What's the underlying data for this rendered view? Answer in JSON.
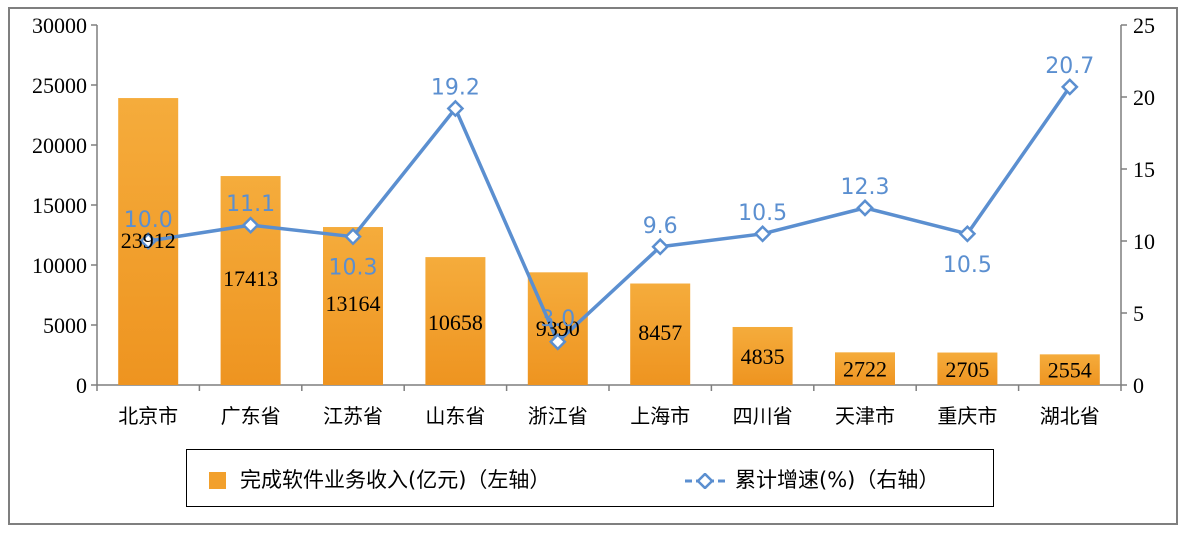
{
  "chart_data": {
    "type": "bar+line",
    "categories": [
      "北京市",
      "广东省",
      "江苏省",
      "山东省",
      "浙江省",
      "上海市",
      "四川省",
      "天津市",
      "重庆市",
      "湖北省"
    ],
    "series": [
      {
        "name": "完成软件业务收入(亿元)（左轴）",
        "type": "bar",
        "axis": "left",
        "values": [
          23912,
          17413,
          13164,
          10658,
          9390,
          8457,
          4835,
          2722,
          2705,
          2554
        ],
        "color": "#f2a02c"
      },
      {
        "name": "累计增速(%)（右轴）",
        "type": "line",
        "axis": "right",
        "values": [
          10.0,
          11.1,
          10.3,
          19.2,
          3.0,
          9.6,
          10.5,
          12.3,
          10.5,
          20.7
        ],
        "value_labels": [
          "10.0",
          "11.1",
          "10.3",
          "19.2",
          "3.0",
          "9.6",
          "10.5",
          "12.3",
          "10.5",
          "20.7"
        ],
        "color": "#5b8fd0"
      }
    ],
    "left_axis": {
      "ylim": [
        0,
        30000
      ],
      "ticks": [
        "0",
        "5000",
        "10000",
        "15000",
        "20000",
        "25000",
        "30000"
      ]
    },
    "right_axis": {
      "ylim": [
        0,
        25
      ],
      "ticks": [
        "0",
        "5",
        "10",
        "15",
        "20",
        "25"
      ]
    },
    "legend_placement": "bottom"
  }
}
